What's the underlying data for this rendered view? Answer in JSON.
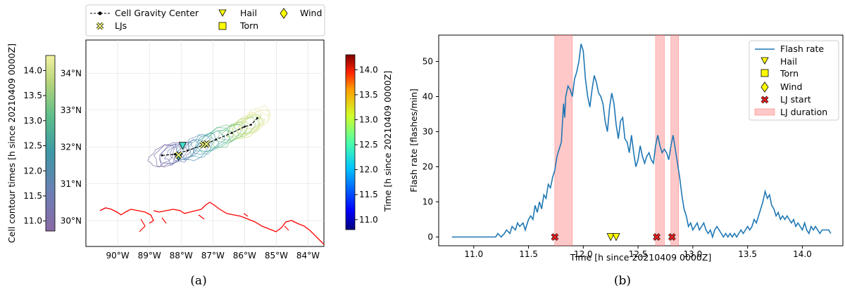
{
  "panel_a": {
    "caption": "(a)",
    "colorbar_left_label": "Cell contour times [h since 20210409 0000Z]",
    "colorbar_right_label": "Time [h since 20210409 0000Z]",
    "colorbar_ticks": [
      "11.0",
      "11.5",
      "12.0",
      "12.5",
      "13.0",
      "13.5",
      "14.0"
    ],
    "lon_ticks": [
      "90°W",
      "89°W",
      "88°W",
      "87°W",
      "86°W",
      "85°W",
      "84°W"
    ],
    "lat_ticks": [
      "30°N",
      "31°N",
      "32°N",
      "33°N",
      "34°N"
    ],
    "legend": {
      "cgc": "Cell Gravity Center",
      "ljs": "LJs",
      "hail": "Hail",
      "torn": "Torn",
      "wind": "Wind"
    },
    "colors": {
      "coast": "#ff0000",
      "track": "#000000",
      "marker": "#ffff00"
    }
  },
  "panel_b": {
    "caption": "(b)",
    "legend": {
      "flash": "Flash rate",
      "hail": "Hail",
      "torn": "Torn",
      "wind": "Wind",
      "ljstart": "LJ start",
      "ljdur": "LJ duration"
    }
  },
  "chart_data": [
    {
      "type": "line",
      "xlabel": "Time [h since 20210409 0000Z]",
      "ylabel": "Flash rate [flashes/min]",
      "xlim": [
        10.68,
        14.37
      ],
      "ylim": [
        -2.5,
        57.5
      ],
      "xticks": [
        "11.0",
        "11.5",
        "12.0",
        "12.5",
        "13.0",
        "13.5",
        "14.0"
      ],
      "yticks": [
        "0",
        "10",
        "20",
        "30",
        "40",
        "50"
      ],
      "series": [
        {
          "name": "Flash rate",
          "color": "#1f77b4",
          "points": [
            [
              10.8,
              0
            ],
            [
              11.0,
              0
            ],
            [
              11.2,
              0
            ],
            [
              11.22,
              1
            ],
            [
              11.25,
              0
            ],
            [
              11.28,
              1
            ],
            [
              11.3,
              2
            ],
            [
              11.33,
              1
            ],
            [
              11.35,
              3
            ],
            [
              11.38,
              2
            ],
            [
              11.4,
              4
            ],
            [
              11.42,
              3
            ],
            [
              11.45,
              4
            ],
            [
              11.47,
              2
            ],
            [
              11.5,
              5
            ],
            [
              11.52,
              6
            ],
            [
              11.54,
              5
            ],
            [
              11.56,
              9
            ],
            [
              11.58,
              7
            ],
            [
              11.6,
              10
            ],
            [
              11.62,
              8
            ],
            [
              11.64,
              12
            ],
            [
              11.66,
              11
            ],
            [
              11.68,
              15
            ],
            [
              11.7,
              14
            ],
            [
              11.72,
              17
            ],
            [
              11.74,
              19
            ],
            [
              11.76,
              23
            ],
            [
              11.78,
              25
            ],
            [
              11.8,
              27
            ],
            [
              11.82,
              38
            ],
            [
              11.83,
              34
            ],
            [
              11.84,
              40
            ],
            [
              11.86,
              43
            ],
            [
              11.88,
              42
            ],
            [
              11.9,
              40
            ],
            [
              11.92,
              45
            ],
            [
              11.94,
              47
            ],
            [
              11.96,
              50
            ],
            [
              11.98,
              55
            ],
            [
              12.0,
              53
            ],
            [
              12.02,
              45
            ],
            [
              12.04,
              40
            ],
            [
              12.06,
              37
            ],
            [
              12.08,
              42
            ],
            [
              12.1,
              46
            ],
            [
              12.12,
              44
            ],
            [
              12.14,
              41
            ],
            [
              12.16,
              40
            ],
            [
              12.18,
              38
            ],
            [
              12.2,
              33
            ],
            [
              12.22,
              30
            ],
            [
              12.24,
              37
            ],
            [
              12.26,
              41
            ],
            [
              12.28,
              38
            ],
            [
              12.3,
              32
            ],
            [
              12.32,
              28
            ],
            [
              12.34,
              33
            ],
            [
              12.36,
              34
            ],
            [
              12.38,
              28
            ],
            [
              12.4,
              27
            ],
            [
              12.42,
              24
            ],
            [
              12.44,
              29
            ],
            [
              12.46,
              24
            ],
            [
              12.48,
              20
            ],
            [
              12.5,
              22
            ],
            [
              12.52,
              26
            ],
            [
              12.54,
              23
            ],
            [
              12.56,
              21
            ],
            [
              12.58,
              23
            ],
            [
              12.6,
              24
            ],
            [
              12.62,
              22
            ],
            [
              12.64,
              21
            ],
            [
              12.66,
              26
            ],
            [
              12.68,
              29
            ],
            [
              12.7,
              26
            ],
            [
              12.72,
              24
            ],
            [
              12.74,
              25
            ],
            [
              12.76,
              24
            ],
            [
              12.78,
              22
            ],
            [
              12.8,
              26
            ],
            [
              12.82,
              29
            ],
            [
              12.84,
              25
            ],
            [
              12.86,
              21
            ],
            [
              12.88,
              17
            ],
            [
              12.9,
              12
            ],
            [
              12.92,
              8
            ],
            [
              12.94,
              6
            ],
            [
              12.96,
              3
            ],
            [
              12.98,
              4
            ],
            [
              13.0,
              2
            ],
            [
              13.02,
              3
            ],
            [
              13.04,
              4
            ],
            [
              13.06,
              2
            ],
            [
              13.08,
              3
            ],
            [
              13.1,
              4
            ],
            [
              13.12,
              2
            ],
            [
              13.14,
              1
            ],
            [
              13.16,
              2
            ],
            [
              13.18,
              0
            ],
            [
              13.2,
              2
            ],
            [
              13.22,
              3
            ],
            [
              13.24,
              2
            ],
            [
              13.26,
              1
            ],
            [
              13.28,
              0
            ],
            [
              13.3,
              1
            ],
            [
              13.32,
              0
            ],
            [
              13.34,
              1
            ],
            [
              13.36,
              0
            ],
            [
              13.38,
              1
            ],
            [
              13.4,
              0
            ],
            [
              13.42,
              1
            ],
            [
              13.44,
              2
            ],
            [
              13.46,
              1
            ],
            [
              13.48,
              2
            ],
            [
              13.5,
              3
            ],
            [
              13.52,
              2
            ],
            [
              13.54,
              3
            ],
            [
              13.56,
              5
            ],
            [
              13.58,
              4
            ],
            [
              13.6,
              6
            ],
            [
              13.62,
              8
            ],
            [
              13.64,
              10
            ],
            [
              13.66,
              13
            ],
            [
              13.68,
              11
            ],
            [
              13.7,
              12
            ],
            [
              13.72,
              9
            ],
            [
              13.74,
              8
            ],
            [
              13.76,
              6
            ],
            [
              13.78,
              7
            ],
            [
              13.8,
              5
            ],
            [
              13.82,
              6
            ],
            [
              13.84,
              5
            ],
            [
              13.86,
              6
            ],
            [
              13.88,
              5
            ],
            [
              13.9,
              4
            ],
            [
              13.92,
              5
            ],
            [
              13.94,
              3
            ],
            [
              13.96,
              4
            ],
            [
              13.98,
              3
            ],
            [
              14.0,
              2
            ],
            [
              14.02,
              4
            ],
            [
              14.04,
              2
            ],
            [
              14.06,
              1
            ],
            [
              14.08,
              3
            ],
            [
              14.1,
              2
            ],
            [
              14.12,
              3
            ],
            [
              14.14,
              2
            ],
            [
              14.16,
              1
            ],
            [
              14.18,
              2
            ],
            [
              14.2,
              2
            ],
            [
              14.22,
              2
            ],
            [
              14.24,
              2
            ],
            [
              14.26,
              1
            ]
          ]
        }
      ],
      "hail": [
        12.25,
        12.3
      ],
      "lj_start": [
        11.74,
        12.67,
        12.81
      ],
      "lj_duration": [
        [
          11.74,
          11.9
        ],
        [
          12.66,
          12.74
        ],
        [
          12.8,
          12.87
        ]
      ],
      "grid": false,
      "legend_position": "upper right"
    },
    {
      "type": "map",
      "xlim_lon": [
        -91,
        -83.5
      ],
      "ylim_lat": [
        29.3,
        34.9
      ],
      "track": [
        [
          -88.6,
          31.77
        ],
        [
          -88.2,
          31.8
        ],
        [
          -87.8,
          31.9
        ],
        [
          -87.3,
          32.05
        ],
        [
          -86.9,
          32.2
        ],
        [
          -86.4,
          32.38
        ],
        [
          -86.0,
          32.55
        ],
        [
          -85.8,
          32.6
        ],
        [
          -85.6,
          32.78
        ]
      ],
      "ljs": [
        [
          -88.08,
          31.78
        ],
        [
          -87.3,
          32.06
        ],
        [
          -87.2,
          32.08
        ]
      ],
      "hail": [
        [
          -88.08,
          31.73
        ],
        [
          -87.95,
          32.03
        ]
      ],
      "colorbar_range": [
        10.8,
        14.3
      ],
      "grid": true
    }
  ]
}
